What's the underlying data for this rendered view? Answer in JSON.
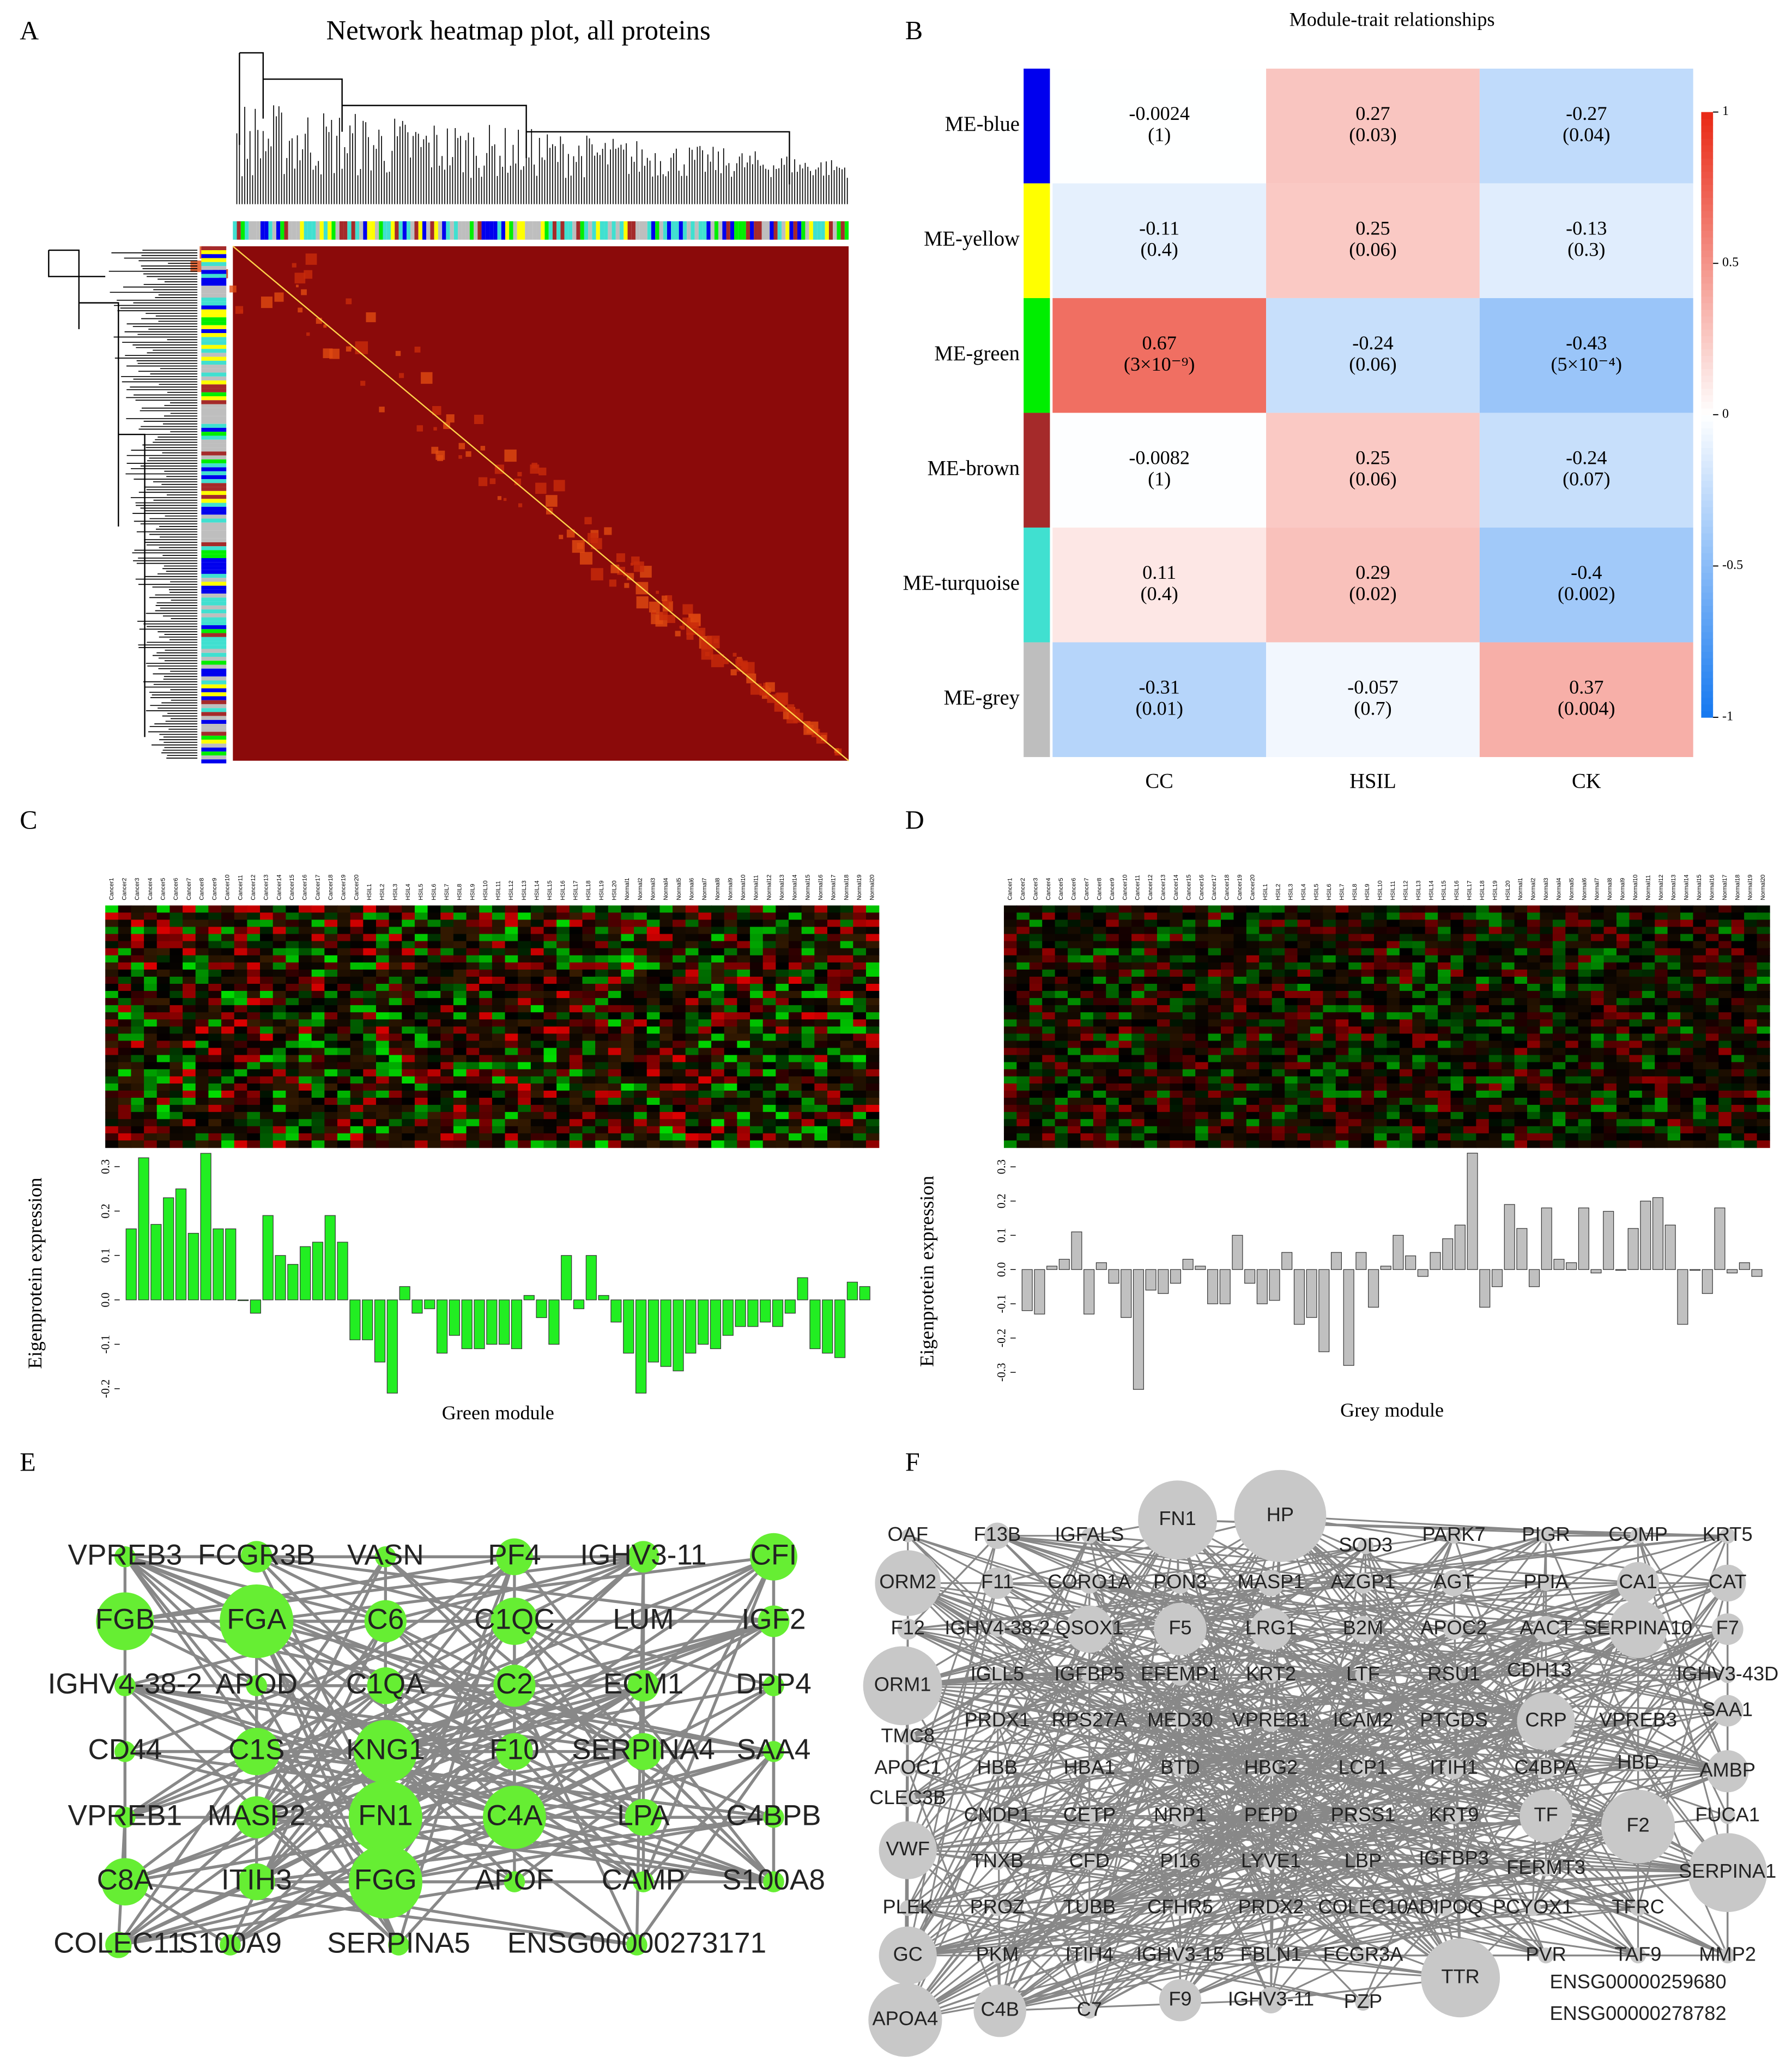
{
  "panel_labels": [
    "A",
    "B",
    "C",
    "D",
    "E",
    "F"
  ],
  "chart_data": [
    {
      "type": "heatmap",
      "title": "Network heatmap plot, all proteins"
    },
    {
      "type": "heatmap",
      "title": "Module-trait relationships",
      "rows": [
        "ME-blue",
        "ME-yellow",
        "ME-green",
        "ME-brown",
        "ME-turquoise",
        "ME-grey"
      ],
      "row_colors": [
        "#0000ee",
        "#ffff00",
        "#00ee00",
        "#a52a2a",
        "#40e0d0",
        "#bebebe"
      ],
      "columns": [
        "CC",
        "HSIL",
        "CK"
      ],
      "values": [
        [
          -0.0024,
          0.27,
          -0.27
        ],
        [
          -0.11,
          0.25,
          -0.13
        ],
        [
          0.67,
          -0.24,
          -0.43
        ],
        [
          -0.0082,
          0.25,
          -0.24
        ],
        [
          0.11,
          0.29,
          -0.4
        ],
        [
          -0.31,
          -0.057,
          0.37
        ]
      ],
      "pvalue_labels": [
        [
          "(1)",
          "(0.03)",
          "(0.04)"
        ],
        [
          "(0.4)",
          "(0.06)",
          "(0.3)"
        ],
        [
          "(3×10⁻⁹)",
          "(0.06)",
          "(5×10⁻⁴)"
        ],
        [
          "(1)",
          "(0.06)",
          "(0.07)"
        ],
        [
          "(0.4)",
          "(0.02)",
          "(0.002)"
        ],
        [
          "(0.01)",
          "(0.7)",
          "(0.004)"
        ]
      ],
      "zlim": [
        -1,
        1
      ],
      "zticks": [
        -1,
        -0.5,
        0,
        0.5,
        1
      ]
    },
    {
      "type": "bar",
      "x_label": "Green module",
      "y_label": "Eigenprotein expression",
      "color": "#22ee22",
      "categories": [
        "Cancer1",
        "Cancer2",
        "Cancer3",
        "Cancer4",
        "Cancer5",
        "Cancer6",
        "Cancer7",
        "Cancer8",
        "Cancer9",
        "Cancer10",
        "Cancer11",
        "Cancer12",
        "Cancer13",
        "Cancer14",
        "Cancer15",
        "Cancer16",
        "Cancer17",
        "Cancer18",
        "Cancer19",
        "Cancer20",
        "HSIL1",
        "HSIL2",
        "HSIL3",
        "HSIL4",
        "HSIL5",
        "HSIL6",
        "HSIL7",
        "HSIL8",
        "HSIL9",
        "HSIL10",
        "HSIL11",
        "HSIL12",
        "HSIL13",
        "HSIL14",
        "HSIL15",
        "HSIL16",
        "HSIL17",
        "HSIL18",
        "HSIL19",
        "HSIL20",
        "Normal1",
        "Normal2",
        "Normal3",
        "Normal4",
        "Normal5",
        "Normal6",
        "Normal7",
        "Normal8",
        "Normal9",
        "Normal10",
        "Normal11",
        "Normal12",
        "Normal13",
        "Normal14",
        "Normal15",
        "Normal16",
        "Normal17",
        "Normal18",
        "Normal19",
        "Normal20"
      ],
      "values": [
        0.16,
        0.32,
        0.17,
        0.23,
        0.25,
        0.15,
        0.33,
        0.16,
        0.16,
        0,
        -0.03,
        0.19,
        0.1,
        0.08,
        0.12,
        0.13,
        0.19,
        0.13,
        -0.09,
        -0.09,
        -0.14,
        -0.21,
        0.03,
        -0.03,
        -0.02,
        -0.12,
        -0.08,
        -0.11,
        -0.11,
        -0.1,
        -0.1,
        -0.11,
        0.01,
        -0.04,
        -0.1,
        0.1,
        -0.02,
        0.1,
        0.01,
        -0.05,
        -0.12,
        -0.21,
        -0.14,
        -0.15,
        -0.16,
        -0.12,
        -0.1,
        -0.11,
        -0.08,
        -0.06,
        -0.06,
        -0.05,
        -0.06,
        -0.03,
        0.05,
        -0.11,
        -0.12,
        -0.13,
        0.04,
        0.03
      ],
      "ylim": [
        -0.22,
        0.34
      ],
      "yticks": [
        -0.2,
        -0.1,
        {
          "value": 0,
          "label": "0.0"
        },
        0.1,
        0.2,
        0.3
      ]
    },
    {
      "type": "bar",
      "x_label": "Grey module",
      "y_label": "Eigenprotein expression",
      "color": "#c0c0c0",
      "categories": [
        "Cancer1",
        "Cancer2",
        "Cancer3",
        "Cancer4",
        "Cancer5",
        "Cancer6",
        "Cancer7",
        "Cancer8",
        "Cancer9",
        "Cancer10",
        "Cancer11",
        "Cancer12",
        "Cancer13",
        "Cancer14",
        "Cancer15",
        "Cancer16",
        "Cancer17",
        "Cancer18",
        "Cancer19",
        "Cancer20",
        "HSIL1",
        "HSIL2",
        "HSIL3",
        "HSIL4",
        "HSIL5",
        "HSIL6",
        "HSIL7",
        "HSIL8",
        "HSIL9",
        "HSIL10",
        "HSIL11",
        "HSIL12",
        "HSIL13",
        "HSIL14",
        "HSIL15",
        "HSIL16",
        "HSIL17",
        "HSIL18",
        "HSIL19",
        "HSIL20",
        "Normal1",
        "Normal2",
        "Normal3",
        "Normal4",
        "Normal5",
        "Normal6",
        "Normal7",
        "Normal8",
        "Normal9",
        "Normal10",
        "Normal11",
        "Normal12",
        "Normal13",
        "Normal14",
        "Normal15",
        "Normal16",
        "Normal17",
        "Normal18",
        "Normal19",
        "Normal20"
      ],
      "values": [
        -0.12,
        -0.13,
        0.01,
        0.03,
        0.11,
        -0.13,
        0.02,
        -0.04,
        -0.14,
        -0.35,
        -0.06,
        -0.07,
        -0.04,
        0.03,
        0.01,
        -0.1,
        -0.1,
        0.1,
        -0.04,
        -0.1,
        -0.09,
        0.05,
        -0.16,
        -0.14,
        -0.24,
        0.05,
        -0.28,
        0.05,
        -0.11,
        0.01,
        0.1,
        0.04,
        -0.02,
        0.05,
        0.09,
        0.13,
        0.34,
        -0.11,
        -0.05,
        0.19,
        0.12,
        -0.05,
        0.18,
        0.03,
        0.02,
        0.18,
        -0.01,
        0.17,
        0,
        0.12,
        0.2,
        0.21,
        0.13,
        -0.16,
        0,
        -0.07,
        0.18,
        -0.01,
        0.02,
        -0.02
      ],
      "ylim": [
        -0.37,
        0.36
      ],
      "yticks": [
        -0.3,
        -0.2,
        -0.1,
        {
          "value": 0,
          "label": "0.0"
        },
        0.1,
        0.2,
        0.3
      ]
    }
  ],
  "networks": {
    "E": {
      "node_color": "#66ee33",
      "nodes": [
        {
          "label": "VPREB3",
          "size": 8
        },
        {
          "label": "FCGR3B",
          "size": 12
        },
        {
          "label": "VASN",
          "size": 8
        },
        {
          "label": "PF4",
          "size": 14
        },
        {
          "label": "IGHV3-11",
          "size": 12
        },
        {
          "label": "CFI",
          "size": 18
        },
        {
          "label": "FGB",
          "size": 22
        },
        {
          "label": "FGA",
          "size": 28
        },
        {
          "label": "C6",
          "size": 16
        },
        {
          "label": "C1QC",
          "size": 18
        },
        {
          "label": "LUM",
          "size": 0
        },
        {
          "label": "IGF2",
          "size": 12
        },
        {
          "label": "IGHV4-38-2",
          "size": 8
        },
        {
          "label": "APOD",
          "size": 8
        },
        {
          "label": "C1QA",
          "size": 14
        },
        {
          "label": "C2",
          "size": 16
        },
        {
          "label": "ECM1",
          "size": 12
        },
        {
          "label": "DPP4",
          "size": 8
        },
        {
          "label": "CD44",
          "size": 8
        },
        {
          "label": "C1S",
          "size": 18
        },
        {
          "label": "KNG1",
          "size": 24
        },
        {
          "label": "F10",
          "size": 14
        },
        {
          "label": "SERPINA4",
          "size": 14
        },
        {
          "label": "SAA4",
          "size": 8
        },
        {
          "label": "VPREB1",
          "size": 8
        },
        {
          "label": "MASP2",
          "size": 16
        },
        {
          "label": "FN1",
          "size": 28
        },
        {
          "label": "C4A",
          "size": 24
        },
        {
          "label": "LPA",
          "size": 14
        },
        {
          "label": "C4BPB",
          "size": 8
        },
        {
          "label": "C8A",
          "size": 18
        },
        {
          "label": "ITIH3",
          "size": 14
        },
        {
          "label": "FGG",
          "size": 28
        },
        {
          "label": "APOF",
          "size": 8
        },
        {
          "label": "CAMP",
          "size": 8
        },
        {
          "label": "S100A8",
          "size": 8
        },
        {
          "label": "COLEC11",
          "size": 10
        },
        {
          "label": "S100A9",
          "size": 8
        },
        {
          "label": "SERPINA5",
          "size": 8
        },
        {
          "label": "ENSG00000273171",
          "size": 8
        }
      ]
    },
    "F": {
      "node_color": "#c8c8c8",
      "nodes": [
        {
          "label": "OAF",
          "size": 5
        },
        {
          "label": "F13B",
          "size": 10
        },
        {
          "label": "IGFALS",
          "size": 6
        },
        {
          "label": "FN1",
          "size": 30
        },
        {
          "label": "HP",
          "size": 35
        },
        {
          "label": "SOD3",
          "size": 6
        },
        {
          "label": "PARK7",
          "size": 6
        },
        {
          "label": "PIGR",
          "size": 6
        },
        {
          "label": "COMP",
          "size": 6
        },
        {
          "label": "KRT5",
          "size": 6
        },
        {
          "label": "ORM2",
          "size": 25
        },
        {
          "label": "F11",
          "size": 12
        },
        {
          "label": "CORO1A",
          "size": 8
        },
        {
          "label": "PON3",
          "size": 8
        },
        {
          "label": "MASP1",
          "size": 10
        },
        {
          "label": "AZGP1",
          "size": 8
        },
        {
          "label": "AGT",
          "size": 10
        },
        {
          "label": "PPIA",
          "size": 6
        },
        {
          "label": "CA1",
          "size": 16
        },
        {
          "label": "CAT",
          "size": 14
        },
        {
          "label": "F12",
          "size": 8
        },
        {
          "label": "IGHV4-38-2",
          "size": 6
        },
        {
          "label": "QSOX1",
          "size": 18
        },
        {
          "label": "F5",
          "size": 20
        },
        {
          "label": "LRG1",
          "size": 16
        },
        {
          "label": "B2M",
          "size": 10
        },
        {
          "label": "APOC2",
          "size": 8
        },
        {
          "label": "AACT",
          "size": 10
        },
        {
          "label": "SERPINA10",
          "size": 22
        },
        {
          "label": "F7",
          "size": 12
        },
        {
          "label": "ORM1",
          "size": 30
        },
        {
          "label": "IGLL5",
          "size": 6
        },
        {
          "label": "IGFBP5",
          "size": 6
        },
        {
          "label": "EFEMP1",
          "size": 8
        },
        {
          "label": "KRT2",
          "size": 6
        },
        {
          "label": "LTF",
          "size": 6
        },
        {
          "label": "RSU1",
          "size": 6
        },
        {
          "label": "CDH13",
          "size": 8
        },
        {
          "label": "IGHV3-43D",
          "size": 6
        },
        {
          "label": "PRDX1",
          "size": 6
        },
        {
          "label": "RPS27A",
          "size": 6
        },
        {
          "label": "MED30",
          "size": 6
        },
        {
          "label": "VPREB1",
          "size": 8
        },
        {
          "label": "ICAM2",
          "size": 6
        },
        {
          "label": "PTGDS",
          "size": 6
        },
        {
          "label": "CRP",
          "size": 22
        },
        {
          "label": "VPREB3",
          "size": 6
        },
        {
          "label": "SAA1",
          "size": 12
        },
        {
          "label": "TMC8",
          "size": 6
        },
        {
          "label": "APOC1",
          "size": 6
        },
        {
          "label": "HBB",
          "size": 6
        },
        {
          "label": "HBA1",
          "size": 6
        },
        {
          "label": "BTD",
          "size": 6
        },
        {
          "label": "HBG2",
          "size": 6
        },
        {
          "label": "LCP1",
          "size": 6
        },
        {
          "label": "ITIH1",
          "size": 8
        },
        {
          "label": "C4BPA",
          "size": 8
        },
        {
          "label": "HBD",
          "size": 6
        },
        {
          "label": "AMBP",
          "size": 16
        },
        {
          "label": "CLEC3B",
          "size": 6
        },
        {
          "label": "CNDP1",
          "size": 6
        },
        {
          "label": "CETP",
          "size": 6
        },
        {
          "label": "NRP1",
          "size": 8
        },
        {
          "label": "PEPD",
          "size": 6
        },
        {
          "label": "PRSS1",
          "size": 6
        },
        {
          "label": "KRT9",
          "size": 6
        },
        {
          "label": "TF",
          "size": 20
        },
        {
          "label": "F2",
          "size": 28
        },
        {
          "label": "FUCA1",
          "size": 6
        },
        {
          "label": "VWF",
          "size": 22
        },
        {
          "label": "TNXB",
          "size": 6
        },
        {
          "label": "CFD",
          "size": 6
        },
        {
          "label": "PI16",
          "size": 6
        },
        {
          "label": "LYVE1",
          "size": 6
        },
        {
          "label": "LBP",
          "size": 6
        },
        {
          "label": "IGFBP3",
          "size": 6
        },
        {
          "label": "FERMT3",
          "size": 6
        },
        {
          "label": "SERPINA1",
          "size": 30
        },
        {
          "label": "PLEK",
          "size": 6
        },
        {
          "label": "PROZ",
          "size": 6
        },
        {
          "label": "TUBB",
          "size": 6
        },
        {
          "label": "CFHR5",
          "size": 6
        },
        {
          "label": "PRDX2",
          "size": 6
        },
        {
          "label": "COLEC10",
          "size": 6
        },
        {
          "label": "ADIPOQ",
          "size": 6
        },
        {
          "label": "PCYOX1",
          "size": 6
        },
        {
          "label": "TFRC",
          "size": 6
        },
        {
          "label": "GC",
          "size": 22
        },
        {
          "label": "PKM",
          "size": 6
        },
        {
          "label": "ITIH4",
          "size": 6
        },
        {
          "label": "IGHV3-15",
          "size": 6
        },
        {
          "label": "FBLN1",
          "size": 6
        },
        {
          "label": "FCGR3A",
          "size": 6
        },
        {
          "label": "TTR",
          "size": 30
        },
        {
          "label": "PVR",
          "size": 6
        },
        {
          "label": "TAF9",
          "size": 6
        },
        {
          "label": "MMP2",
          "size": 6
        },
        {
          "label": "ENSG00000259680",
          "size": 0
        },
        {
          "label": "ENSG00000278782",
          "size": 0
        },
        {
          "label": "APOA4",
          "size": 28
        },
        {
          "label": "C4B",
          "size": 20
        },
        {
          "label": "C7",
          "size": 6
        },
        {
          "label": "F9",
          "size": 16
        },
        {
          "label": "IGHV3-11",
          "size": 10
        },
        {
          "label": "PZP",
          "size": 6
        }
      ]
    }
  }
}
